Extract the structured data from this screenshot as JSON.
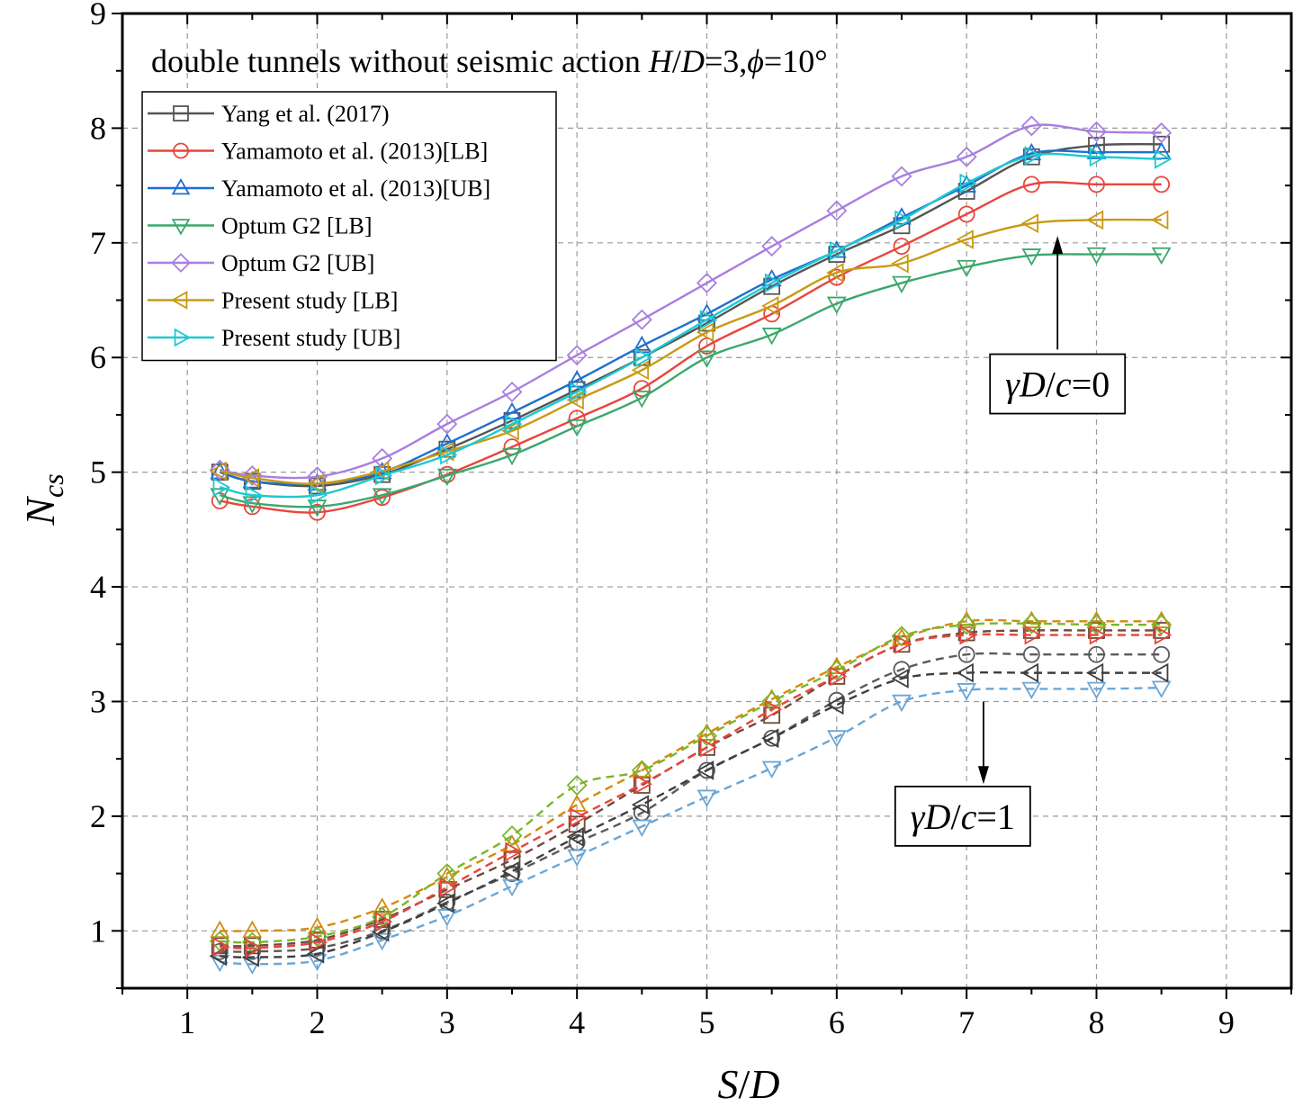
{
  "chart_data": {
    "type": "line",
    "title": "double tunnels without seismic action ",
    "title_math": {
      "h": "H",
      "slash": "/",
      "d": "D",
      "eq1": "=3,",
      "phi": "ϕ",
      "eq2": "=10°"
    },
    "xlabel": {
      "s": "S",
      "slash": "/",
      "d": "D"
    },
    "ylabel": {
      "n": "N",
      "sub": "cs"
    },
    "xlim": [
      0.5,
      9.5
    ],
    "ylim": [
      0.5,
      9
    ],
    "xticks": [
      1,
      2,
      3,
      4,
      5,
      6,
      7,
      8,
      9
    ],
    "yticks": [
      1,
      2,
      3,
      4,
      5,
      6,
      7,
      8,
      9
    ],
    "grid": true,
    "legend_position": "top-left",
    "x": [
      1.25,
      1.5,
      2,
      2.5,
      3,
      3.5,
      4,
      4.5,
      5,
      5.5,
      6,
      6.5,
      7,
      7.5,
      8,
      8.5
    ],
    "series": [
      {
        "name": "Yang et al. (2017)",
        "group": "gamma0",
        "color": "#555555",
        "marker": "square",
        "dashed": false,
        "values": [
          5.0,
          4.92,
          4.88,
          4.98,
          5.2,
          5.45,
          5.72,
          6.0,
          6.3,
          6.62,
          6.9,
          7.15,
          7.45,
          7.75,
          7.85,
          7.86
        ]
      },
      {
        "name": "Yamamoto et al. (2013)[LB]",
        "group": "gamma0",
        "color": "#e8453c",
        "marker": "circle",
        "dashed": false,
        "values": [
          4.75,
          4.7,
          4.65,
          4.78,
          4.98,
          5.22,
          5.47,
          5.73,
          6.1,
          6.38,
          6.7,
          6.97,
          7.25,
          7.51,
          7.51,
          7.51
        ]
      },
      {
        "name": "Yamamoto et al. (2013)[UB]",
        "group": "gamma0",
        "color": "#1f6fd0",
        "marker": "triangle-up",
        "dashed": false,
        "values": [
          5.0,
          4.92,
          4.9,
          5.0,
          5.25,
          5.52,
          5.8,
          6.1,
          6.38,
          6.68,
          6.93,
          7.22,
          7.5,
          7.78,
          7.79,
          7.79
        ]
      },
      {
        "name": "Optum G2 [LB]",
        "group": "gamma0",
        "color": "#3aa86b",
        "marker": "triangle-down",
        "dashed": false,
        "values": [
          4.8,
          4.73,
          4.7,
          4.8,
          4.97,
          5.15,
          5.4,
          5.65,
          6.0,
          6.2,
          6.47,
          6.65,
          6.79,
          6.89,
          6.9,
          6.9
        ]
      },
      {
        "name": "Optum G2 [UB]",
        "group": "gamma0",
        "color": "#a97ee0",
        "marker": "diamond",
        "dashed": false,
        "values": [
          5.02,
          4.97,
          4.96,
          5.12,
          5.42,
          5.7,
          6.02,
          6.33,
          6.65,
          6.97,
          7.28,
          7.58,
          7.75,
          8.02,
          7.97,
          7.96
        ]
      },
      {
        "name": "Present study [LB]",
        "group": "gamma0",
        "color": "#c99a12",
        "marker": "triangle-left",
        "dashed": false,
        "values": [
          5.01,
          4.95,
          4.9,
          5.01,
          5.18,
          5.36,
          5.63,
          5.89,
          6.22,
          6.45,
          6.74,
          6.82,
          7.03,
          7.17,
          7.2,
          7.2
        ]
      },
      {
        "name": "Present study [UB]",
        "group": "gamma0",
        "color": "#1ec9d2",
        "marker": "triangle-right",
        "dashed": false,
        "values": [
          4.87,
          4.8,
          4.8,
          4.97,
          5.15,
          5.42,
          5.7,
          6.0,
          6.33,
          6.65,
          6.93,
          7.2,
          7.52,
          7.76,
          7.75,
          7.73
        ]
      },
      {
        "name": "g1-yang",
        "group": "gamma1",
        "color": "#6e4a3a",
        "marker": "square",
        "dashed": true,
        "values": [
          0.87,
          0.87,
          0.92,
          1.1,
          1.36,
          1.62,
          1.93,
          2.27,
          2.6,
          2.88,
          3.22,
          3.5,
          3.6,
          3.62,
          3.62,
          3.62
        ]
      },
      {
        "name": "g1-yam-lb",
        "group": "gamma1",
        "color": "#5a5a5a",
        "marker": "circle",
        "dashed": true,
        "values": [
          0.82,
          0.82,
          0.85,
          1.0,
          1.25,
          1.5,
          1.77,
          2.03,
          2.4,
          2.68,
          3.01,
          3.28,
          3.41,
          3.41,
          3.41,
          3.41
        ]
      },
      {
        "name": "g1-yam-ub",
        "group": "gamma1",
        "color": "#d68a10",
        "marker": "triangle-up",
        "dashed": true,
        "values": [
          1.0,
          1.0,
          1.03,
          1.2,
          1.47,
          1.75,
          2.1,
          2.4,
          2.72,
          3.02,
          3.3,
          3.55,
          3.7,
          3.7,
          3.7,
          3.7
        ]
      },
      {
        "name": "g1-optum-lb",
        "group": "gamma1",
        "color": "#6aa6d6",
        "marker": "triangle-down",
        "dashed": true,
        "values": [
          0.73,
          0.71,
          0.74,
          0.92,
          1.13,
          1.39,
          1.65,
          1.91,
          2.17,
          2.42,
          2.69,
          3.0,
          3.1,
          3.11,
          3.11,
          3.12
        ]
      },
      {
        "name": "g1-optum-ub",
        "group": "gamma1",
        "color": "#7bb62a",
        "marker": "diamond",
        "dashed": true,
        "values": [
          0.91,
          0.9,
          0.95,
          1.12,
          1.5,
          1.83,
          2.27,
          2.4,
          2.7,
          3.0,
          3.27,
          3.57,
          3.67,
          3.68,
          3.67,
          3.67
        ]
      },
      {
        "name": "g1-present-lb",
        "group": "gamma1",
        "color": "#3e3e3e",
        "marker": "triangle-left",
        "dashed": true,
        "values": [
          0.78,
          0.77,
          0.8,
          0.99,
          1.24,
          1.52,
          1.82,
          2.1,
          2.4,
          2.68,
          2.97,
          3.2,
          3.25,
          3.25,
          3.25,
          3.25
        ]
      },
      {
        "name": "g1-present-ub",
        "group": "gamma1",
        "color": "#e8453c",
        "marker": "triangle-right",
        "dashed": true,
        "values": [
          0.86,
          0.85,
          0.9,
          1.08,
          1.38,
          1.69,
          1.99,
          2.28,
          2.6,
          2.93,
          3.22,
          3.5,
          3.58,
          3.58,
          3.58,
          3.58
        ]
      }
    ],
    "legend": [
      "Yang et al. (2017)",
      "Yamamoto et al. (2013)[LB]",
      "Yamamoto et al. (2013)[UB]",
      "Optum G2 [LB]",
      "Optum G2 [UB]",
      "Present study [LB]",
      "Present study [UB]"
    ],
    "annotations": [
      {
        "id": "a0",
        "gamma": "γ",
        "d": "D",
        "slash": "/",
        "c": "c",
        "eq": "=0",
        "arrow_from": [
          7.7,
          6.07
        ],
        "arrow_to": [
          7.7,
          7.06
        ],
        "box_center": [
          7.7,
          5.77
        ]
      },
      {
        "id": "a1",
        "gamma": "γ",
        "d": "D",
        "slash": "/",
        "c": "c",
        "eq": "=1",
        "arrow_from": [
          7.13,
          3.0
        ],
        "arrow_to": [
          7.13,
          2.28
        ],
        "box_center": [
          6.97,
          2.0
        ]
      }
    ]
  }
}
